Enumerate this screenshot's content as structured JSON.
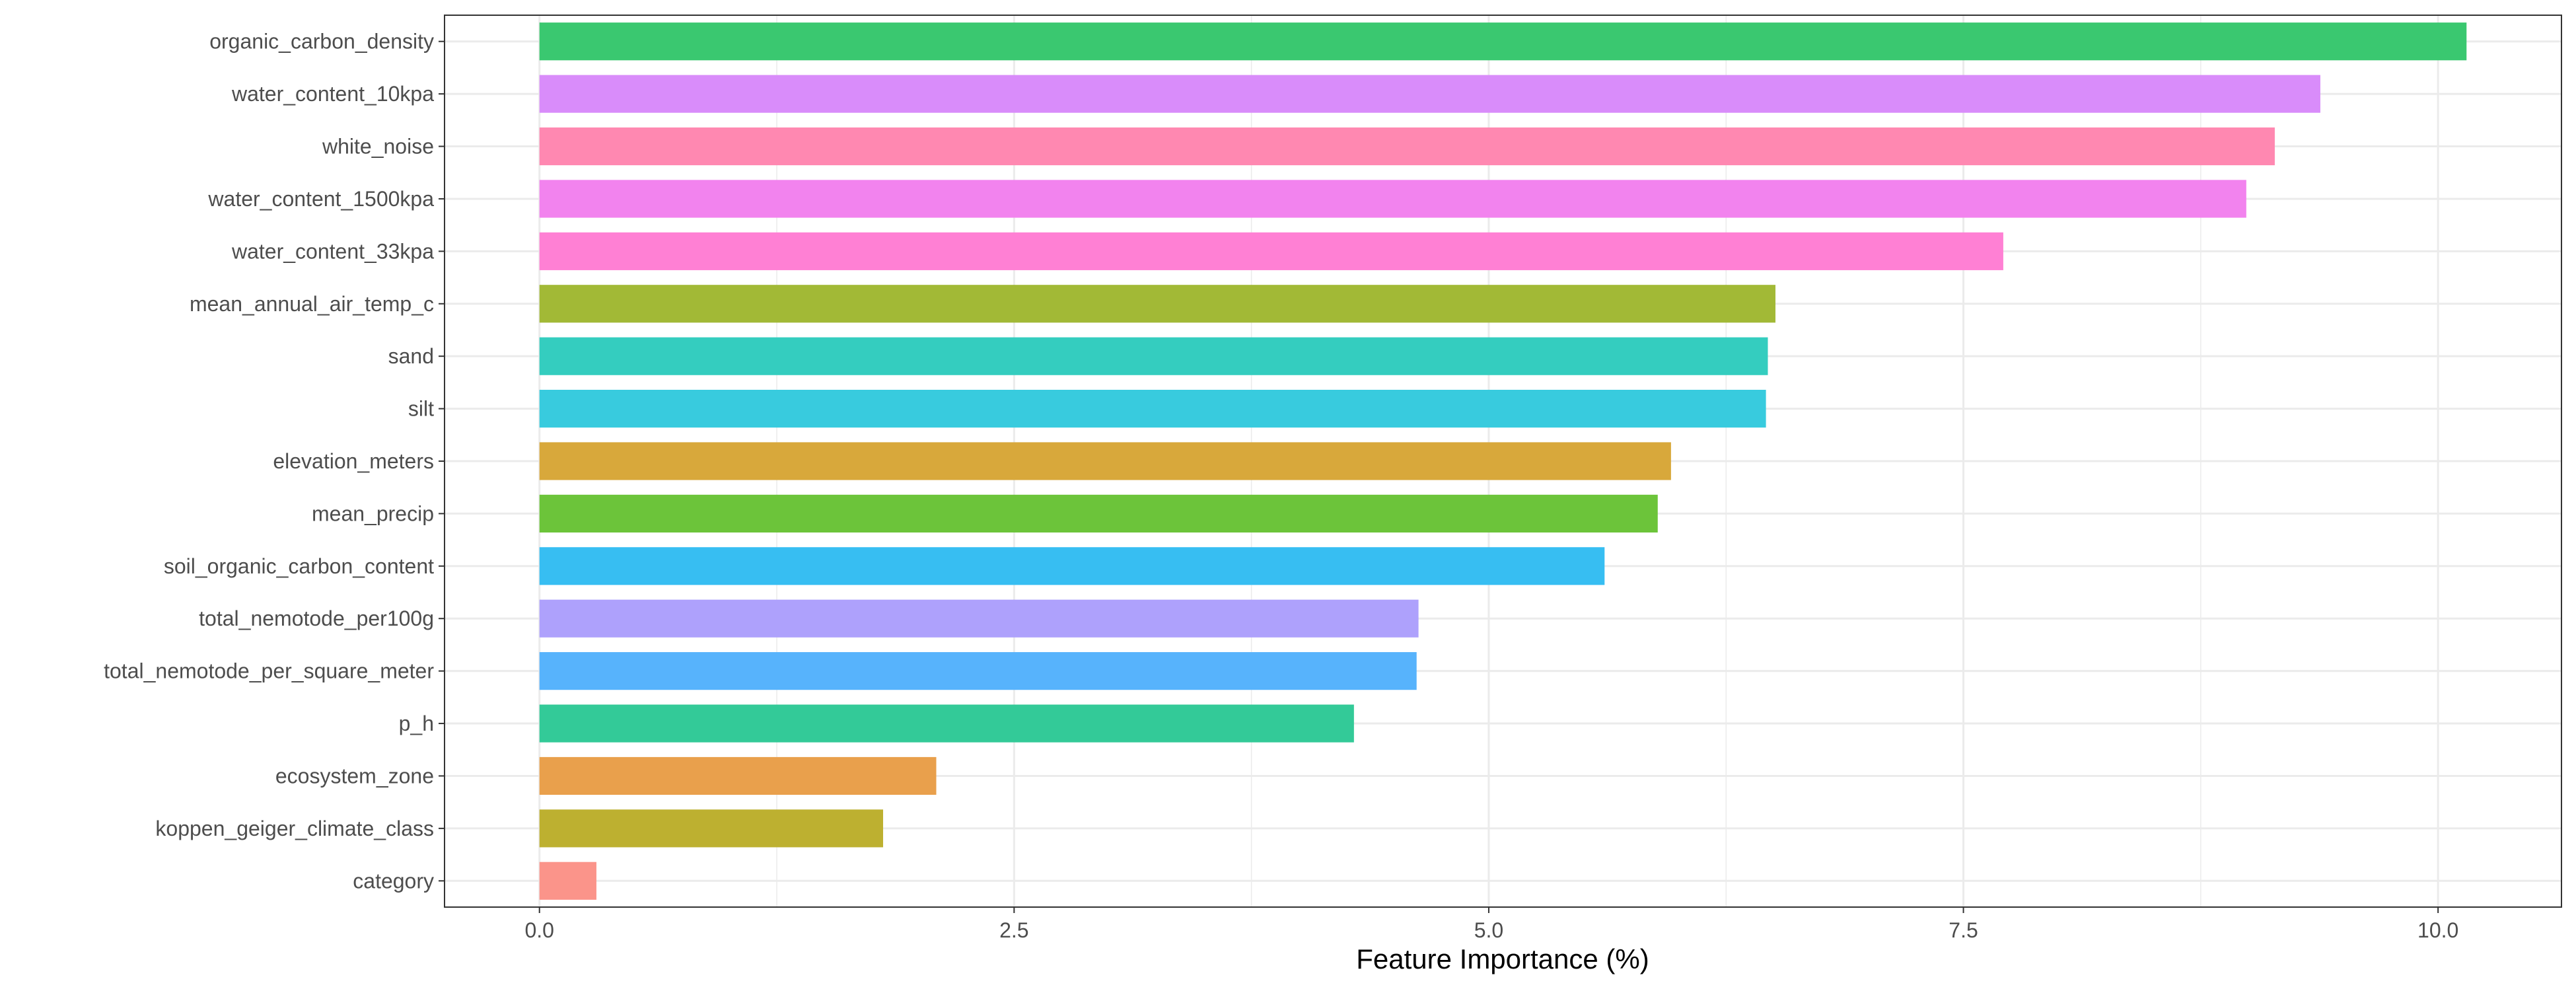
{
  "chart_data": {
    "type": "bar",
    "orientation": "horizontal",
    "title": "",
    "xlabel": "Feature Importance (%)",
    "ylabel": "",
    "xlim": [
      -0.5,
      10.65
    ],
    "x_ticks": [
      0.0,
      2.5,
      5.0,
      7.5,
      10.0
    ],
    "x_tick_labels": [
      "0.0",
      "2.5",
      "5.0",
      "7.5",
      "10.0"
    ],
    "grid": true,
    "legend": "none",
    "categories": [
      "organic_carbon_density",
      "water_content_10kpa",
      "white_noise",
      "water_content_1500kpa",
      "water_content_33kpa",
      "mean_annual_air_temp_c",
      "sand",
      "silt",
      "elevation_meters",
      "mean_precip",
      "soil_organic_carbon_content",
      "total_nemotode_per100g",
      "total_nemotode_per_square_meter",
      "p_h",
      "ecosystem_zone",
      "koppen_geiger_climate_class",
      "category"
    ],
    "values": [
      10.15,
      9.38,
      9.14,
      8.99,
      7.71,
      6.51,
      6.47,
      6.46,
      5.96,
      5.89,
      5.61,
      4.63,
      4.62,
      4.29,
      2.09,
      1.81,
      0.3
    ],
    "colors": [
      "#3AC870",
      "#D98CFA",
      "#FF88B1",
      "#F283EE",
      "#FF80D4",
      "#A2B936",
      "#34CDBF",
      "#38CBDE",
      "#D8A83B",
      "#6CC43A",
      "#37BEF2",
      "#AEA1FC",
      "#57B3FC",
      "#33CA98",
      "#E9A04C",
      "#BDB030",
      "#FB948A"
    ]
  }
}
